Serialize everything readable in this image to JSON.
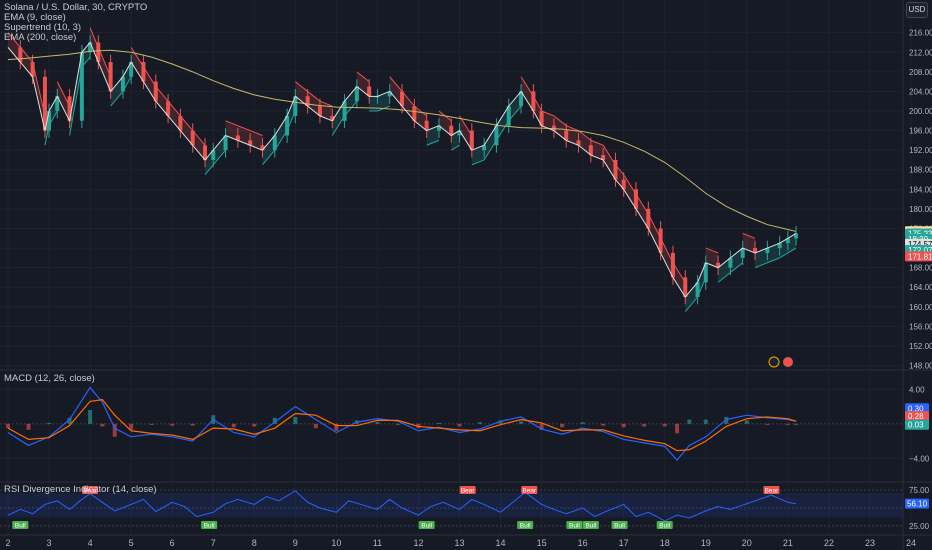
{
  "header": {
    "symbol_line": "Solana / U.S. Dollar, 30, CRYPTO",
    "indicators": [
      "EMA (9, close)",
      "Supertrend (10, 3)",
      "EMA (200, close)"
    ],
    "currency": "USD"
  },
  "macd_panel": {
    "label": "MACD (12, 26, close)"
  },
  "rsi_panel": {
    "label": "RSI Divergence Indicator (14, close)"
  },
  "colors": {
    "background": "#161a25",
    "grid": "#1f2330",
    "up_candle": "#26a69a",
    "down_candle": "#ef5350",
    "ema200": "#c8b86a",
    "ema9": "#e0e0e0",
    "supertrend_up": "#26a69a",
    "supertrend_down": "#ef5350",
    "macd_line": "#2962ff",
    "signal_line": "#ff6d00",
    "rsi_line": "#2962ff"
  },
  "chart_data": [
    {
      "type": "line",
      "panel": "price",
      "y_ticks": [
        216,
        212,
        208,
        204,
        200,
        196,
        192,
        188,
        184,
        180,
        176,
        172,
        168,
        164,
        160,
        156,
        152,
        148
      ],
      "ylim": [
        147.5,
        219
      ],
      "x_ticks": [
        "2",
        "3",
        "4",
        "5",
        "6",
        "7",
        "8",
        "9",
        "10",
        "11",
        "12",
        "13",
        "14",
        "15",
        "16",
        "17",
        "18",
        "19",
        "20",
        "21",
        "22",
        "23",
        "24"
      ],
      "xlim": [
        2,
        24
      ],
      "price_labels": [
        {
          "value": "175.43",
          "bg": "#f2e0a0",
          "fg": "#000000",
          "y": 175.43
        },
        {
          "value": "175.23",
          "bg": "#26a69a",
          "fg": "#ffffff",
          "y": 174.95
        },
        {
          "value": "18:30",
          "bg": "#26a69a",
          "fg": "#ffffff",
          "y": 173.85
        },
        {
          "value": "174.57",
          "bg": "#e0e0e0",
          "fg": "#000000",
          "y": 172.85
        },
        {
          "value": "172.07",
          "bg": "#26a69a",
          "fg": "#ffffff",
          "y": 171.6
        },
        {
          "value": "171.81",
          "bg": "#ef5350",
          "fg": "#ffffff",
          "y": 170.3
        }
      ],
      "series": [
        {
          "role": "close",
          "x": [
            2.0,
            2.3,
            2.6,
            2.9,
            3.0,
            3.2,
            3.5,
            3.8,
            4.0,
            4.2,
            4.5,
            4.8,
            5.0,
            5.3,
            5.6,
            5.9,
            6.2,
            6.5,
            6.8,
            7.0,
            7.3,
            7.6,
            7.9,
            8.2,
            8.5,
            8.8,
            9.0,
            9.3,
            9.6,
            9.9,
            10.2,
            10.5,
            10.8,
            11.0,
            11.3,
            11.6,
            11.9,
            12.2,
            12.5,
            12.8,
            13.0,
            13.3,
            13.6,
            13.9,
            14.2,
            14.5,
            14.8,
            15.0,
            15.3,
            15.6,
            15.9,
            16.2,
            16.5,
            16.8,
            17.0,
            17.3,
            17.6,
            17.9,
            18.2,
            18.5,
            18.8,
            19.0,
            19.3,
            19.6,
            19.9,
            20.2,
            20.5,
            20.8,
            21.0,
            21.2
          ],
          "y": [
            213,
            210,
            207,
            196,
            200,
            203,
            198,
            212,
            214,
            210,
            204,
            207,
            210,
            206,
            202,
            199,
            196,
            193,
            190,
            192,
            195,
            194,
            193,
            192,
            195,
            199,
            203,
            201,
            199,
            198,
            202,
            205,
            203,
            203,
            204,
            201,
            198,
            196,
            197,
            195,
            196,
            192,
            193,
            197,
            201,
            204,
            200,
            197,
            196,
            194,
            193,
            191,
            190,
            186,
            184,
            180,
            176,
            171,
            166,
            162,
            165,
            169,
            168,
            170,
            172,
            171,
            172,
            173,
            174,
            175
          ]
        },
        {
          "role": "ema200",
          "x": [
            2.0,
            2.5,
            3.0,
            3.5,
            4.0,
            4.5,
            5.0,
            5.5,
            6.0,
            6.5,
            7.0,
            7.5,
            8.0,
            8.5,
            9.0,
            9.5,
            10.0,
            10.5,
            11.0,
            11.5,
            12.0,
            12.5,
            13.0,
            13.5,
            14.0,
            14.5,
            15.0,
            15.5,
            16.0,
            16.5,
            17.0,
            17.5,
            18.0,
            18.5,
            19.0,
            19.5,
            20.0,
            20.5,
            21.0,
            21.2
          ],
          "y": [
            210.5,
            210.8,
            211.2,
            211.6,
            212.2,
            212.4,
            212.0,
            211.0,
            209.6,
            208.0,
            206.2,
            204.6,
            203.3,
            202.4,
            201.8,
            201.2,
            200.8,
            200.7,
            200.6,
            200.3,
            199.8,
            199.2,
            198.5,
            197.7,
            197.0,
            196.6,
            196.5,
            196.3,
            195.8,
            195.0,
            193.6,
            191.8,
            189.5,
            186.5,
            183.2,
            180.5,
            178.5,
            176.8,
            175.8,
            175.4
          ]
        }
      ],
      "signals": [
        {
          "label": "Bear",
          "x": 4.0,
          "kind": "bear"
        },
        {
          "label": "Bear",
          "x": 13.2,
          "kind": "bear"
        },
        {
          "label": "Bear",
          "x": 14.7,
          "kind": "bear"
        },
        {
          "label": "Bear",
          "x": 20.6,
          "kind": "bear"
        },
        {
          "label": "Bull",
          "x": 2.3,
          "kind": "bull"
        },
        {
          "label": "Bull",
          "x": 6.9,
          "kind": "bull"
        },
        {
          "label": "Bull",
          "x": 12.2,
          "kind": "bull"
        },
        {
          "label": "Bull",
          "x": 14.6,
          "kind": "bull"
        },
        {
          "label": "Bull",
          "x": 15.8,
          "kind": "bull"
        },
        {
          "label": "Bull",
          "x": 16.2,
          "kind": "bull"
        },
        {
          "label": "Bull",
          "x": 16.9,
          "kind": "bull"
        },
        {
          "label": "Bull",
          "x": 18.0,
          "kind": "bull"
        }
      ]
    },
    {
      "type": "line",
      "panel": "macd",
      "y_ticks": [
        4.0,
        0.0,
        -4.0
      ],
      "y_tick_labels": [
        "4.00",
        "−4.00"
      ],
      "ylim": [
        -6.5,
        6.0
      ],
      "value_labels": [
        {
          "value": "0.30",
          "bg": "#2962ff",
          "y": 1.8
        },
        {
          "value": "0.28",
          "bg": "#ef5350",
          "y": 0.9
        },
        {
          "value": "0.03",
          "bg": "#26a69a",
          "y": -0.1
        }
      ],
      "series": [
        {
          "name": "MACD",
          "x": [
            2.0,
            2.5,
            3.0,
            3.5,
            4.0,
            4.3,
            4.6,
            5.0,
            5.5,
            6.0,
            6.5,
            7.0,
            7.5,
            8.0,
            8.5,
            9.0,
            9.5,
            10.0,
            10.5,
            11.0,
            11.5,
            12.0,
            12.5,
            13.0,
            13.5,
            14.0,
            14.5,
            15.0,
            15.5,
            16.0,
            16.5,
            17.0,
            17.5,
            18.0,
            18.3,
            18.6,
            19.0,
            19.5,
            20.0,
            20.5,
            21.0,
            21.2
          ],
          "y": [
            -1.0,
            -2.5,
            -1.5,
            0.5,
            4.2,
            2.5,
            -0.5,
            -1.5,
            -1.2,
            -1.5,
            -2.0,
            0.5,
            -1.0,
            -1.5,
            0.2,
            2.0,
            0.5,
            -1.0,
            0.2,
            0.6,
            0.3,
            -0.8,
            -0.4,
            -1.0,
            -0.6,
            0.3,
            0.8,
            -0.6,
            -1.2,
            -0.5,
            -0.9,
            -1.8,
            -2.2,
            -2.6,
            -4.2,
            -2.5,
            -1.5,
            0.5,
            1.0,
            0.7,
            0.5,
            0.3
          ]
        },
        {
          "name": "Signal",
          "x": [
            2.0,
            2.5,
            3.0,
            3.5,
            4.0,
            4.3,
            4.6,
            5.0,
            5.5,
            6.0,
            6.5,
            7.0,
            7.5,
            8.0,
            8.5,
            9.0,
            9.5,
            10.0,
            10.5,
            11.0,
            11.5,
            12.0,
            12.5,
            13.0,
            13.5,
            14.0,
            14.5,
            15.0,
            15.5,
            16.0,
            16.5,
            17.0,
            17.5,
            18.0,
            18.3,
            18.6,
            19.0,
            19.5,
            20.0,
            20.5,
            21.0,
            21.2
          ],
          "y": [
            -0.5,
            -1.8,
            -1.6,
            -0.2,
            2.6,
            2.8,
            1.0,
            -0.8,
            -1.1,
            -1.3,
            -1.8,
            -0.5,
            -0.6,
            -1.2,
            -0.5,
            1.2,
            1.0,
            -0.2,
            -0.2,
            0.4,
            0.4,
            -0.3,
            -0.5,
            -0.7,
            -0.8,
            -0.1,
            0.5,
            0.1,
            -0.8,
            -0.7,
            -0.7,
            -1.4,
            -1.9,
            -2.3,
            -3.1,
            -3.0,
            -2.0,
            -0.3,
            0.6,
            0.8,
            0.6,
            0.3
          ]
        }
      ]
    },
    {
      "type": "line",
      "panel": "rsi",
      "y_ticks": [
        75.0,
        50.0,
        25.0
      ],
      "y_tick_labels": [
        "75.00",
        "25.00"
      ],
      "ylim": [
        15,
        85
      ],
      "band": [
        37,
        71
      ],
      "value_labels": [
        {
          "value": "56.10",
          "bg": "#2962ff",
          "y": 56.1
        }
      ],
      "series": [
        {
          "name": "RSI",
          "x": [
            2.0,
            2.3,
            2.6,
            2.9,
            3.2,
            3.5,
            3.8,
            4.0,
            4.3,
            4.6,
            5.0,
            5.3,
            5.6,
            6.0,
            6.3,
            6.6,
            7.0,
            7.3,
            7.6,
            8.0,
            8.3,
            8.6,
            9.0,
            9.3,
            9.6,
            10.0,
            10.3,
            10.6,
            11.0,
            11.3,
            11.6,
            12.0,
            12.3,
            12.6,
            13.0,
            13.3,
            13.6,
            14.0,
            14.3,
            14.6,
            15.0,
            15.3,
            15.6,
            16.0,
            16.3,
            16.6,
            17.0,
            17.3,
            17.6,
            18.0,
            18.3,
            18.6,
            19.0,
            19.3,
            19.6,
            20.0,
            20.3,
            20.6,
            21.0,
            21.2
          ],
          "y": [
            40,
            48,
            42,
            55,
            60,
            48,
            62,
            70,
            58,
            46,
            55,
            62,
            45,
            58,
            52,
            38,
            44,
            56,
            62,
            55,
            66,
            60,
            74,
            58,
            50,
            44,
            60,
            55,
            48,
            62,
            50,
            40,
            52,
            58,
            48,
            62,
            55,
            44,
            58,
            72,
            55,
            48,
            42,
            50,
            38,
            46,
            55,
            38,
            44,
            32,
            40,
            36,
            46,
            52,
            48,
            56,
            62,
            68,
            58,
            56
          ]
        }
      ]
    }
  ]
}
